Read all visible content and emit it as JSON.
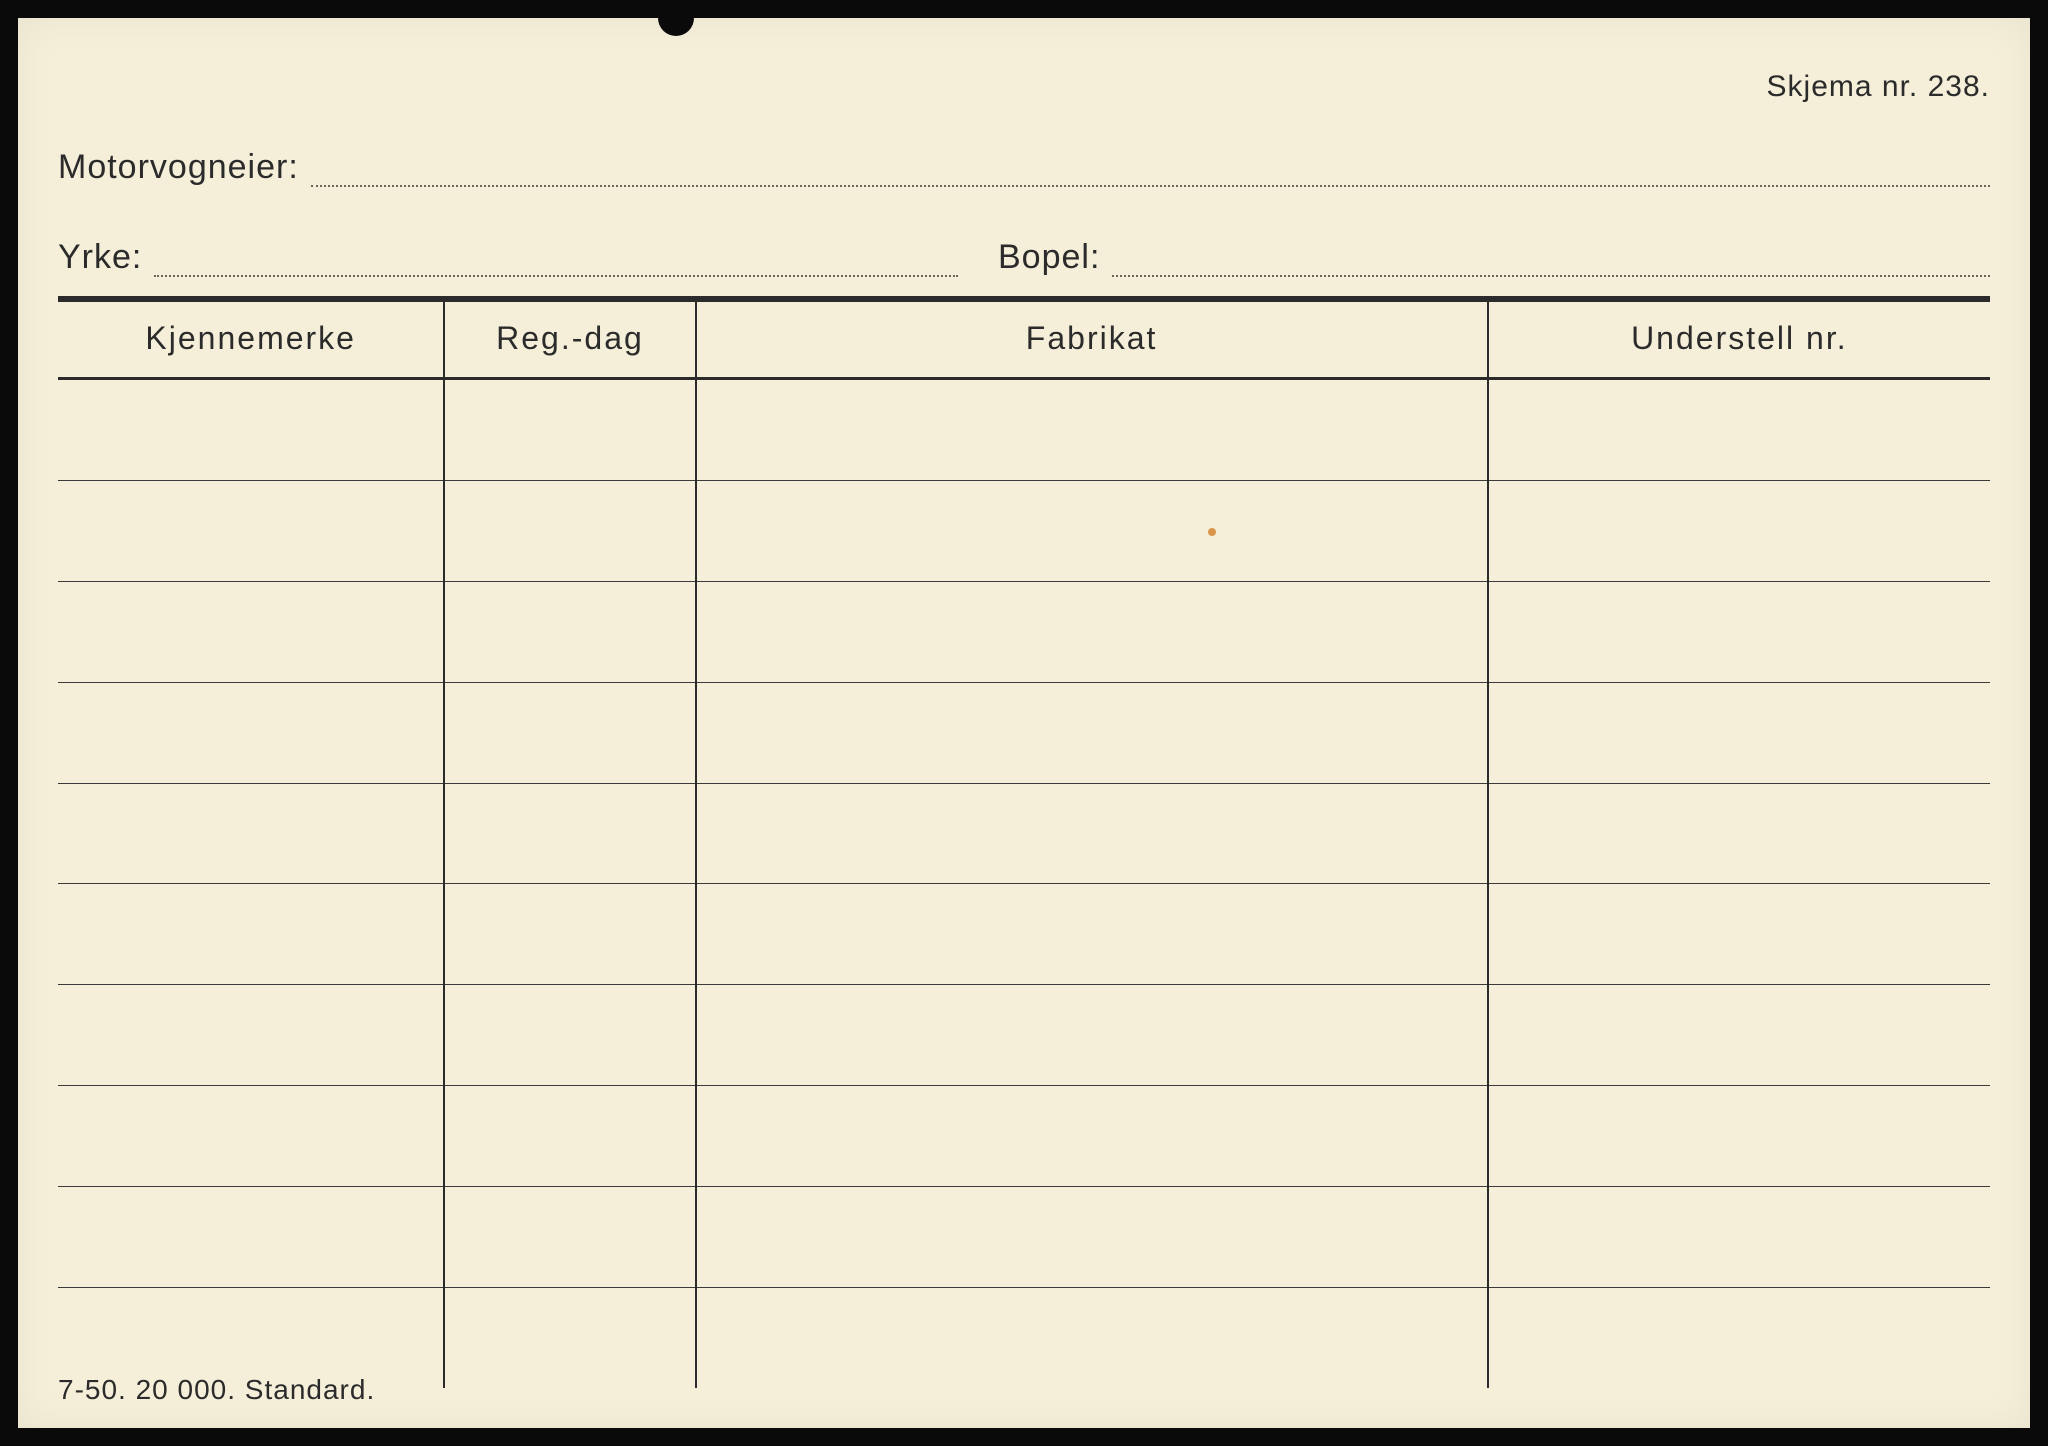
{
  "form": {
    "number_label": "Skjema nr. 238.",
    "owner_label": "Motorvogneier:",
    "occupation_label": "Yrke:",
    "residence_label": "Bopel:",
    "footer": "7-50.  20 000.  Standard."
  },
  "table": {
    "columns": [
      {
        "label": "Kjennemerke",
        "width_pct": 20
      },
      {
        "label": "Reg.-dag",
        "width_pct": 13
      },
      {
        "label": "Fabrikat",
        "width_pct": 41,
        "spaced": true
      },
      {
        "label": "Understell nr.",
        "width_pct": 26
      }
    ],
    "row_count": 10
  },
  "colors": {
    "paper": "#f5efd9",
    "ink": "#2b2b2b",
    "dotted": "#6b6657",
    "frame": "#0a0a0a"
  }
}
